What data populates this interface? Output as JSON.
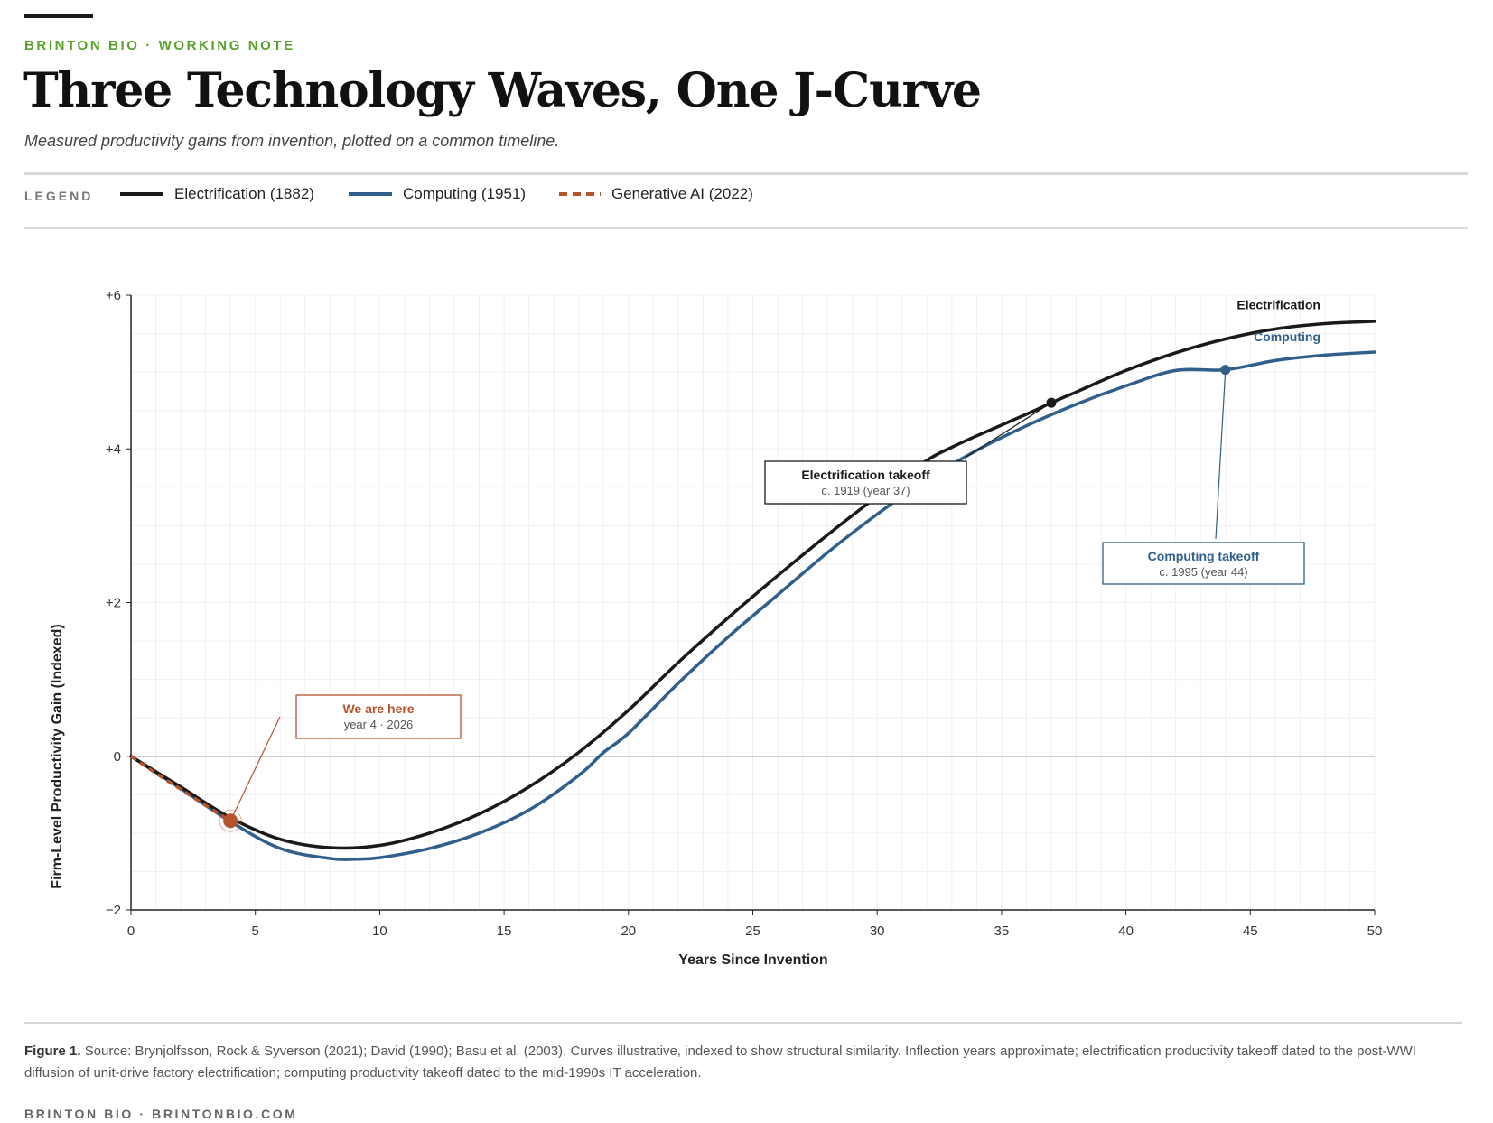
{
  "header": {
    "kicker": "BRINTON BIO · WORKING NOTE",
    "title": "Three Technology Waves, One J-Curve",
    "subtitle": "Measured productivity gains from invention, plotted on a common timeline."
  },
  "legend": {
    "label": "LEGEND",
    "items": [
      {
        "label": "Electrification (1882)",
        "color": "#1a1a1a",
        "style": "solid"
      },
      {
        "label": "Computing (1951)",
        "color": "#2f5f8a",
        "style": "solid"
      },
      {
        "label": "Generative AI (2022)",
        "color": "#b5532b",
        "style": "dashed"
      }
    ]
  },
  "chart_data": {
    "type": "line",
    "title": "Three Technology Waves, One J-Curve",
    "xlabel": "Years Since Invention",
    "ylabel": "Firm-Level Productivity Gain (Indexed)",
    "xlim": [
      0,
      50
    ],
    "ylim": [
      -2,
      6
    ],
    "xticks": [
      "0",
      "5",
      "10",
      "15",
      "20",
      "25",
      "30",
      "35",
      "40",
      "45",
      "50"
    ],
    "yticks": [
      {
        "value": -2,
        "label": "−2"
      },
      {
        "value": 0,
        "label": "0"
      },
      {
        "value": 2,
        "label": "+2"
      },
      {
        "value": 4,
        "label": "+4"
      },
      {
        "value": 6,
        "label": "+6"
      }
    ],
    "series": [
      {
        "name": "Electrification",
        "color": "#1a1a1a",
        "style": "solid",
        "end_label": "Electrification",
        "x": [
          0,
          2,
          4,
          6,
          8,
          10,
          12,
          14,
          16,
          18,
          20,
          22,
          24,
          26,
          28,
          30,
          32,
          33,
          34,
          36,
          37,
          38,
          40,
          42,
          44,
          46,
          48,
          50
        ],
        "y": [
          0,
          -0.4,
          -0.8,
          -1.08,
          -1.19,
          -1.16,
          -1.0,
          -0.75,
          -0.4,
          0.05,
          0.6,
          1.22,
          1.8,
          2.35,
          2.88,
          3.38,
          3.85,
          4.02,
          4.17,
          4.45,
          4.6,
          4.74,
          5.02,
          5.25,
          5.43,
          5.56,
          5.63,
          5.66
        ]
      },
      {
        "name": "Computing",
        "color": "#2f5f8a",
        "style": "solid",
        "end_label": "Computing",
        "x": [
          0,
          2,
          4,
          6,
          8,
          9,
          10,
          12,
          14,
          16,
          18,
          19,
          20,
          22,
          24,
          26,
          28,
          30,
          32,
          34,
          36,
          38,
          40,
          42,
          44,
          46,
          48,
          50
        ],
        "y": [
          0,
          -0.42,
          -0.85,
          -1.2,
          -1.33,
          -1.34,
          -1.32,
          -1.2,
          -1.0,
          -0.7,
          -0.25,
          0.05,
          0.3,
          0.95,
          1.55,
          2.1,
          2.65,
          3.15,
          3.6,
          3.98,
          4.3,
          4.58,
          4.82,
          5.02,
          5.03,
          5.15,
          5.22,
          5.26
        ]
      },
      {
        "name": "Generative AI",
        "color": "#b5532b",
        "style": "dashed",
        "x": [
          0,
          1,
          2,
          3,
          4
        ],
        "y": [
          0,
          -0.22,
          -0.43,
          -0.64,
          -0.84
        ]
      }
    ],
    "annotations": [
      {
        "key": "ai",
        "title": "We are here",
        "sub": "year 4 · 2026",
        "point": [
          4,
          -0.84
        ],
        "color": "#b5532b"
      },
      {
        "key": "elec",
        "title": "Electrification takeoff",
        "sub": "c. 1919 (year 37)",
        "point": [
          37,
          4.6
        ],
        "color": "#1a1a1a"
      },
      {
        "key": "comp",
        "title": "Computing takeoff",
        "sub": "c. 1995 (year 44)",
        "point": [
          44,
          5.03
        ],
        "color": "#2f5f8a"
      }
    ]
  },
  "caption": {
    "label": "Figure 1.",
    "text": "Source: Brynjolfsson, Rock & Syverson (2021); David (1990); Basu et al. (2003). Curves illustrative, indexed to show structural similarity. Inflection years approximate; electrification productivity takeoff dated to the post-WWI diffusion of unit-drive factory electrification; computing productivity takeoff dated to the mid-1990s IT acceleration."
  },
  "footer": "BRINTON BIO · BRINTONBIO.COM"
}
